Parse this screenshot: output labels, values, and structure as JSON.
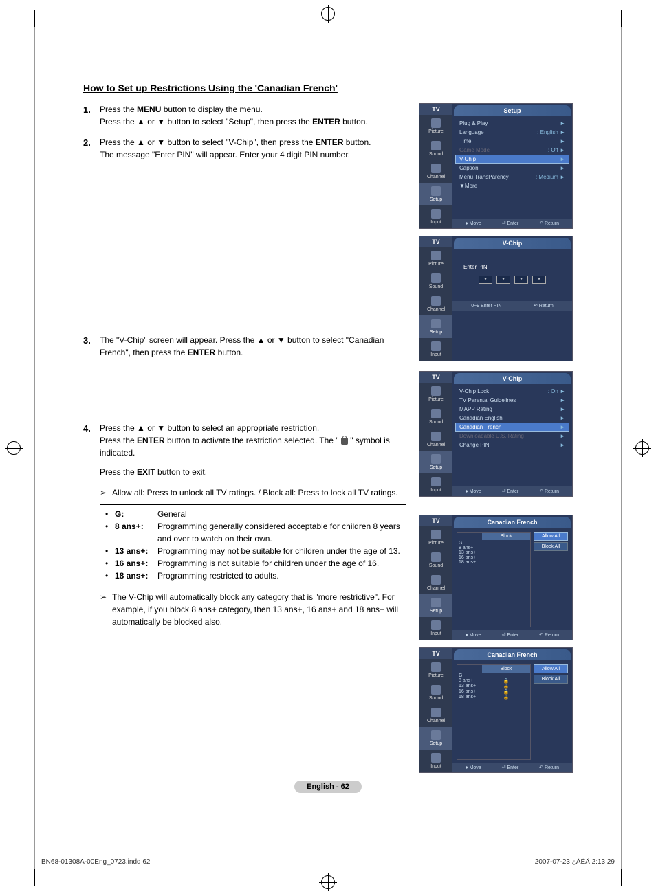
{
  "page": {
    "title": "How to Set up Restrictions Using the 'Canadian French'",
    "footer_label": "English - 62",
    "doc_id": "BN68-01308A-00Eng_0723.indd   62",
    "doc_time": "2007-07-23   ¿ÀÈÄ 2:13:29"
  },
  "steps": [
    {
      "num": "1.",
      "lines": [
        {
          "pre": "Press the ",
          "bold1": "MENU",
          "mid": " button to display the menu."
        },
        {
          "pre": "Press the ▲ or ▼ button to select \"Setup\", then press the ",
          "bold1": "ENTER",
          "mid": " button."
        }
      ]
    },
    {
      "num": "2.",
      "lines": [
        {
          "pre": "Press the ▲ or ▼ button to select \"V-Chip\", then press the ",
          "bold1": "ENTER",
          "mid": " button."
        },
        {
          "pre": "The message \"Enter PIN\" will appear. Enter your 4 digit PIN number."
        }
      ]
    },
    {
      "num": "3.",
      "lines": [
        {
          "pre": "The \"V-Chip\" screen will appear. Press the ▲ or ▼ button to select \"Canadian French\", then press the ",
          "bold1": "ENTER",
          "mid": " button."
        }
      ]
    },
    {
      "num": "4.",
      "lines": [
        {
          "pre": "Press the ▲ or ▼ button to select an appropriate restriction."
        },
        {
          "pre": "Press the ",
          "bold1": "ENTER",
          "mid": " button to activate the restriction selected. The \" ",
          "lock": true,
          "mid2": " \" symbol is indicated."
        },
        {
          "spacer": true
        },
        {
          "pre": "Press the ",
          "bold1": "EXIT",
          "mid": " button to exit."
        }
      ]
    }
  ],
  "note1": "Allow all: Press to unlock all TV ratings. / Block all: Press to lock all TV ratings.",
  "ratings": [
    {
      "label": "G:",
      "desc": "General"
    },
    {
      "label": "8 ans+:",
      "desc": "Programming generally considered acceptable for children 8 years and over to watch on their own."
    },
    {
      "label": "13 ans+:",
      "desc": "Programming may not be suitable for children under the age of 13."
    },
    {
      "label": "16 ans+:",
      "desc": "Programming is not suitable for children under the age of 16."
    },
    {
      "label": "18 ans+:",
      "desc": "Programming restricted to adults."
    }
  ],
  "note2": "The V-Chip will automatically block any category that is \"more restrictive\". For example, if you block 8 ans+ category, then 13 ans+, 16 ans+ and 18 ans+ will automatically be blocked also.",
  "tv_common": {
    "side_title": "TV",
    "side_items": [
      "Picture",
      "Sound",
      "Channel",
      "Setup",
      "Input"
    ],
    "footer_move": "Move",
    "footer_enter": "Enter",
    "footer_return": "Return",
    "footer_pin": "0~9 Enter PIN"
  },
  "tv1": {
    "header": "Setup",
    "items": [
      {
        "label": "Plug & Play",
        "val": "",
        "chev": true
      },
      {
        "label": "Language",
        "val": ": English",
        "chev": true
      },
      {
        "label": "Time",
        "val": "",
        "chev": true
      },
      {
        "label": "Game Mode",
        "val": ": Off",
        "chev": true,
        "dim": true
      },
      {
        "label": "V-Chip",
        "val": "",
        "chev": true,
        "hl": true
      },
      {
        "label": "Caption",
        "val": "",
        "chev": true
      },
      {
        "label": "Menu TransParency",
        "val": ": Medium",
        "chev": true
      },
      {
        "label": "▼More",
        "val": ""
      }
    ]
  },
  "tv2": {
    "header": "V-Chip",
    "pin_label": "Enter PIN",
    "pin_vals": [
      "*",
      "*",
      "*",
      "*"
    ]
  },
  "tv3": {
    "header": "V-Chip",
    "items": [
      {
        "label": "V-Chip Lock",
        "val": ": On",
        "chev": true
      },
      {
        "label": "TV Parental Guidelines",
        "val": "",
        "chev": true
      },
      {
        "label": "MAPP Rating",
        "val": "",
        "chev": true
      },
      {
        "label": "Canadian English",
        "val": "",
        "chev": true
      },
      {
        "label": "Canadian French",
        "val": "",
        "chev": true,
        "hl": true
      },
      {
        "label": "Downloadable U.S. Rating",
        "val": "",
        "chev": true,
        "dim": true
      },
      {
        "label": "Change PIN",
        "val": "",
        "chev": true
      }
    ]
  },
  "tv4": {
    "header": "Canadian French",
    "block_hdr": "Block",
    "ratings": [
      "G",
      "8 ans+",
      "13 ans+",
      "16 ans+",
      "18 ans+"
    ],
    "locks": [
      false,
      false,
      false,
      false,
      false
    ],
    "allow": "Allow All",
    "block": "Block All"
  },
  "tv5": {
    "header": "Canadian French",
    "block_hdr": "Block",
    "ratings": [
      "G",
      "8 ans+",
      "13 ans+",
      "16 ans+",
      "18 ans+"
    ],
    "locks": [
      false,
      true,
      true,
      true,
      true
    ],
    "allow": "Allow All",
    "block": "Block All"
  }
}
